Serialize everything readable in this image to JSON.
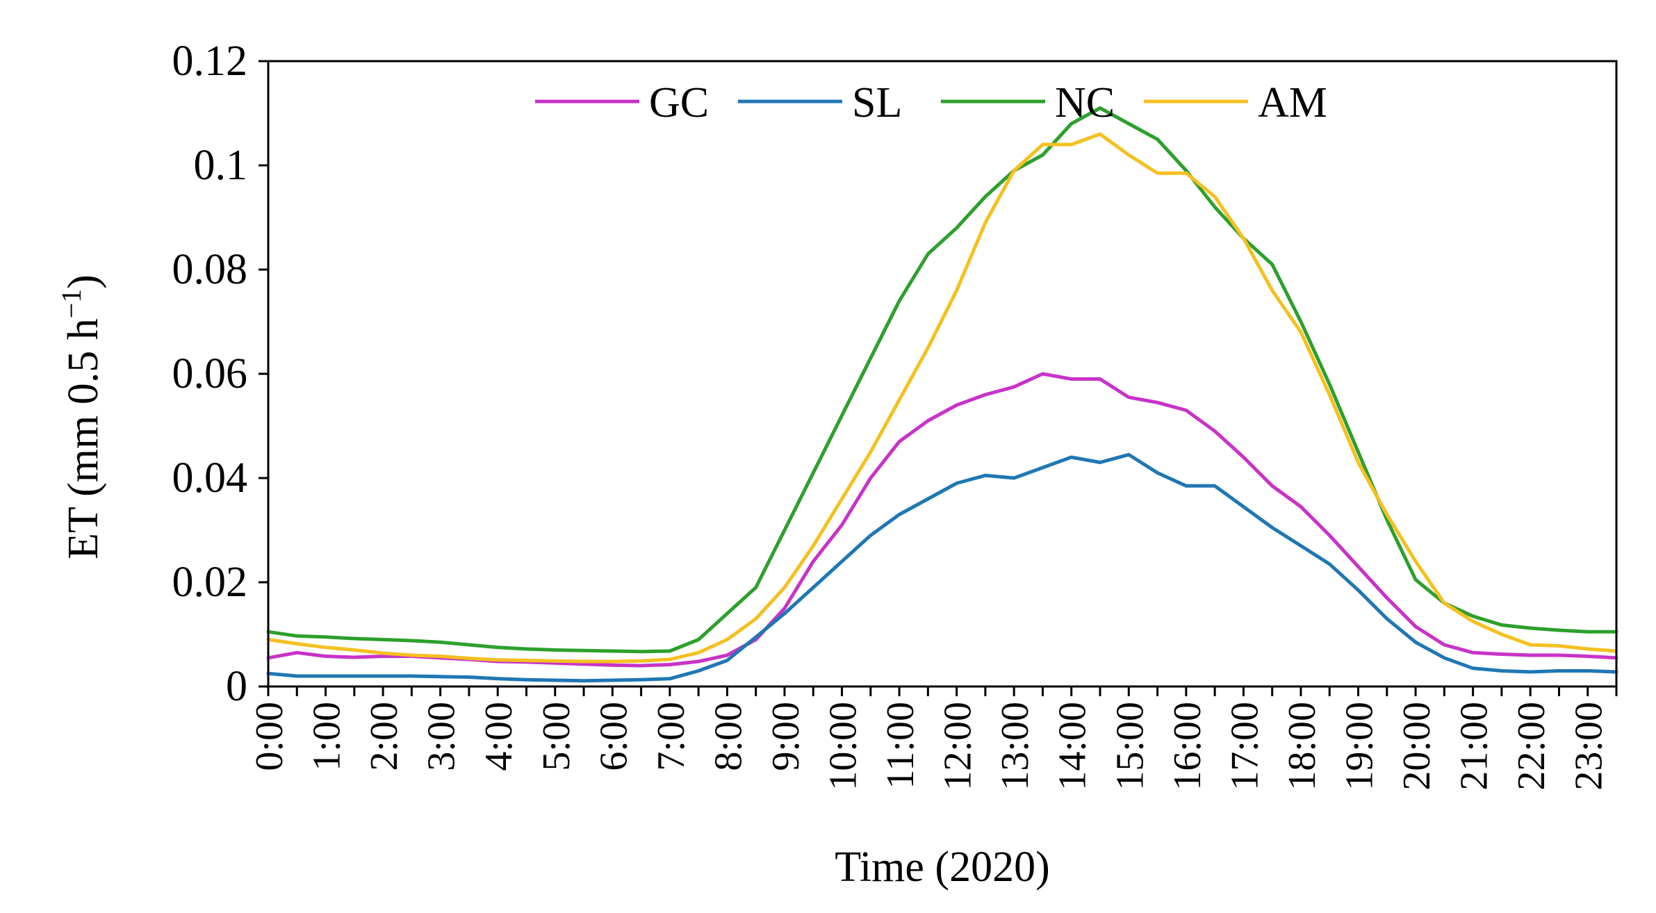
{
  "chart_data": {
    "type": "line",
    "title": "",
    "xlabel": "Time (2020)",
    "ylabel": "ET (mm 0.5 h",
    "ylabel_sup": "−1",
    "ylabel_close": ")",
    "ylim": [
      0,
      0.12
    ],
    "yticks": [
      0,
      0.02,
      0.04,
      0.06,
      0.08,
      0.1,
      0.12
    ],
    "ytick_labels": [
      "0",
      "0.02",
      "0.04",
      "0.06",
      "0.08",
      "0.1",
      "0.12"
    ],
    "x_tick_labels": [
      "0:00",
      "1:00",
      "2:00",
      "3:00",
      "4:00",
      "5:00",
      "6:00",
      "7:00",
      "8:00",
      "9:00",
      "10:00",
      "11:00",
      "12:00",
      "13:00",
      "14:00",
      "15:00",
      "16:00",
      "17:00",
      "18:00",
      "19:00",
      "20:00",
      "21:00",
      "22:00",
      "23:00"
    ],
    "x_hours": [
      0,
      0.5,
      1,
      1.5,
      2,
      2.5,
      3,
      3.5,
      4,
      4.5,
      5,
      5.5,
      6,
      6.5,
      7,
      7.5,
      8,
      8.5,
      9,
      9.5,
      10,
      10.5,
      11,
      11.5,
      12,
      12.5,
      13,
      13.5,
      14,
      14.5,
      15,
      15.5,
      16,
      16.5,
      17,
      17.5,
      18,
      18.5,
      19,
      19.5,
      20,
      20.5,
      21,
      21.5,
      22,
      22.5,
      23,
      23.5
    ],
    "legend_position": "top-center",
    "series": [
      {
        "name": "GC",
        "color": "#c832c8",
        "values": [
          0.0055,
          0.0065,
          0.0058,
          0.0056,
          0.0058,
          0.0058,
          0.0055,
          0.0052,
          0.0048,
          0.0047,
          0.0045,
          0.0043,
          0.0041,
          0.004,
          0.0042,
          0.0048,
          0.006,
          0.009,
          0.015,
          0.024,
          0.031,
          0.04,
          0.047,
          0.051,
          0.054,
          0.056,
          0.0575,
          0.06,
          0.059,
          0.059,
          0.0555,
          0.0545,
          0.053,
          0.049,
          0.044,
          0.0385,
          0.0345,
          0.029,
          0.023,
          0.017,
          0.0115,
          0.008,
          0.0065,
          0.0062,
          0.006,
          0.006,
          0.0058,
          0.0055
        ]
      },
      {
        "name": "SL",
        "color": "#1f77b4",
        "values": [
          0.0025,
          0.002,
          0.002,
          0.002,
          0.002,
          0.002,
          0.0019,
          0.0018,
          0.0015,
          0.0013,
          0.0012,
          0.0011,
          0.0012,
          0.0013,
          0.0015,
          0.003,
          0.005,
          0.0095,
          0.014,
          0.019,
          0.024,
          0.029,
          0.033,
          0.036,
          0.039,
          0.0405,
          0.04,
          0.042,
          0.044,
          0.043,
          0.0445,
          0.041,
          0.0385,
          0.0385,
          0.0345,
          0.0305,
          0.027,
          0.0235,
          0.0185,
          0.013,
          0.0085,
          0.0055,
          0.0035,
          0.003,
          0.0028,
          0.003,
          0.003,
          0.0028
        ]
      },
      {
        "name": "NC",
        "color": "#2ca02c",
        "values": [
          0.0105,
          0.0097,
          0.0095,
          0.0092,
          0.009,
          0.0088,
          0.0085,
          0.008,
          0.0075,
          0.0072,
          0.007,
          0.0069,
          0.0068,
          0.0067,
          0.0068,
          0.009,
          0.014,
          0.019,
          0.03,
          0.041,
          0.052,
          0.063,
          0.074,
          0.083,
          0.088,
          0.094,
          0.099,
          0.102,
          0.108,
          0.111,
          0.108,
          0.105,
          0.099,
          0.092,
          0.086,
          0.081,
          0.07,
          0.058,
          0.045,
          0.032,
          0.0205,
          0.016,
          0.0135,
          0.0118,
          0.0112,
          0.0108,
          0.0105,
          0.0105
        ]
      },
      {
        "name": "AM",
        "color": "#f5c020",
        "values": [
          0.009,
          0.0082,
          0.0075,
          0.007,
          0.0064,
          0.006,
          0.0058,
          0.0054,
          0.0051,
          0.005,
          0.0049,
          0.0048,
          0.0048,
          0.0049,
          0.0052,
          0.0065,
          0.009,
          0.013,
          0.019,
          0.027,
          0.036,
          0.045,
          0.055,
          0.065,
          0.076,
          0.089,
          0.099,
          0.104,
          0.104,
          0.106,
          0.102,
          0.0985,
          0.0985,
          0.094,
          0.086,
          0.076,
          0.068,
          0.056,
          0.043,
          0.033,
          0.024,
          0.016,
          0.0125,
          0.01,
          0.008,
          0.0078,
          0.0072,
          0.0068
        ]
      }
    ]
  }
}
